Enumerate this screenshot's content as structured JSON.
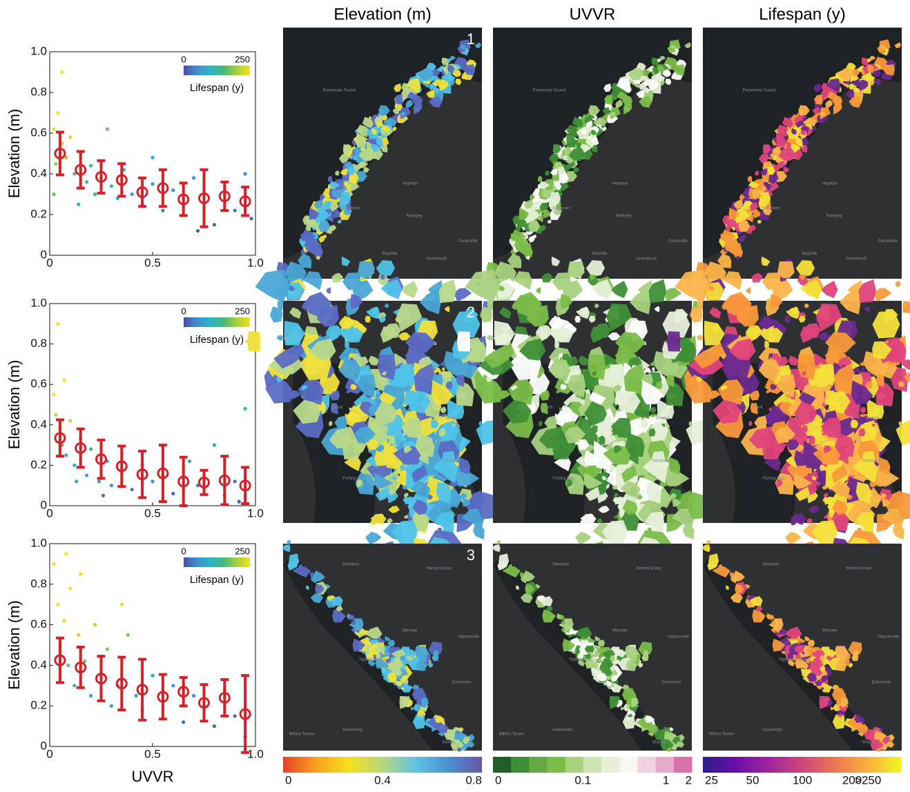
{
  "chart_data": [
    {
      "type": "scatter",
      "ylabel": "Elevation (m)",
      "xlim": [
        0,
        1
      ],
      "ylim": [
        0,
        1
      ],
      "xticks": [
        0,
        0.5,
        {
          "value": 1,
          "label": "1.0"
        }
      ],
      "yticks": [
        0,
        0.2,
        0.4,
        0.6,
        0.8,
        {
          "value": 1,
          "label": "1.0"
        }
      ],
      "points": {
        "x": [
          0.02,
          0.04,
          0.06,
          0.08,
          0.1,
          0.03,
          0.12,
          0.15,
          0.18,
          0.2,
          0.22,
          0.25,
          0.28,
          0.3,
          0.33,
          0.36,
          0.4,
          0.45,
          0.5,
          0.55,
          0.6,
          0.65,
          0.7,
          0.75,
          0.8,
          0.85,
          0.9,
          0.95,
          0.06,
          0.14,
          0.5,
          0.72,
          0.98,
          0.02
        ],
        "y": [
          0.62,
          0.7,
          0.55,
          0.48,
          0.58,
          0.45,
          0.4,
          0.5,
          0.36,
          0.44,
          0.3,
          0.38,
          0.62,
          0.34,
          0.28,
          0.42,
          0.3,
          0.25,
          0.35,
          0.22,
          0.32,
          0.2,
          0.38,
          0.26,
          0.15,
          0.3,
          0.22,
          0.4,
          0.9,
          0.25,
          0.48,
          0.12,
          0.18,
          0.3
        ],
        "lifespan": [
          240,
          250,
          220,
          200,
          230,
          190,
          160,
          180,
          130,
          150,
          100,
          120,
          170,
          100,
          80,
          110,
          70,
          55,
          70,
          40,
          55,
          30,
          60,
          35,
          20,
          40,
          25,
          50,
          250,
          110,
          90,
          15,
          20,
          170
        ]
      },
      "binned": {
        "color": "#d62027",
        "x": [
          0.05,
          0.15,
          0.25,
          0.35,
          0.45,
          0.55,
          0.65,
          0.75,
          0.85,
          0.95
        ],
        "y": [
          0.5,
          0.42,
          0.385,
          0.37,
          0.31,
          0.33,
          0.275,
          0.28,
          0.29,
          0.265
        ],
        "err": [
          0.105,
          0.09,
          0.08,
          0.08,
          0.07,
          0.09,
          0.08,
          0.14,
          0.07,
          0.07
        ]
      },
      "colorbar": {
        "clim": [
          0,
          250
        ],
        "ticks": [
          0,
          250
        ],
        "label": "Lifespan (y)",
        "colors": [
          "#4a4ea3",
          "#3f8fd0",
          "#29b5c4",
          "#45b97c",
          "#a8cf3a",
          "#f6e11c"
        ]
      }
    },
    {
      "type": "scatter",
      "ylabel": "Elevation (m)",
      "xlim": [
        0,
        1
      ],
      "ylim": [
        0,
        1
      ],
      "xticks": [
        0,
        0.5,
        {
          "value": 1,
          "label": "1.0"
        }
      ],
      "yticks": [
        0,
        0.2,
        0.4,
        0.6,
        0.8,
        {
          "value": 1,
          "label": "1.0"
        }
      ],
      "points": {
        "x": [
          0.02,
          0.03,
          0.05,
          0.06,
          0.08,
          0.1,
          0.12,
          0.15,
          0.18,
          0.2,
          0.24,
          0.28,
          0.3,
          0.35,
          0.4,
          0.45,
          0.5,
          0.55,
          0.6,
          0.68,
          0.72,
          0.8,
          0.85,
          0.9,
          0.95,
          0.04,
          0.13,
          0.26,
          0.92,
          0.07
        ],
        "y": [
          0.55,
          0.45,
          0.38,
          0.3,
          0.25,
          0.42,
          0.2,
          0.33,
          0.15,
          0.28,
          0.12,
          0.22,
          0.1,
          0.18,
          0.08,
          0.2,
          0.12,
          0.15,
          0.06,
          0.22,
          0.1,
          0.3,
          0.05,
          0.12,
          0.48,
          0.9,
          0.12,
          0.05,
          0.02,
          0.62
        ],
        "lifespan": [
          250,
          220,
          190,
          150,
          130,
          210,
          100,
          170,
          80,
          140,
          60,
          110,
          50,
          80,
          35,
          80,
          50,
          55,
          20,
          70,
          30,
          80,
          15,
          30,
          100,
          250,
          70,
          30,
          10,
          250
        ]
      },
      "binned": {
        "color": "#d62027",
        "x": [
          0.05,
          0.15,
          0.25,
          0.35,
          0.45,
          0.55,
          0.65,
          0.75,
          0.85,
          0.95
        ],
        "y": [
          0.335,
          0.285,
          0.23,
          0.195,
          0.155,
          0.16,
          0.12,
          0.115,
          0.125,
          0.1
        ],
        "err": [
          0.09,
          0.095,
          0.095,
          0.1,
          0.115,
          0.14,
          0.12,
          0.06,
          0.12,
          0.09
        ]
      },
      "colorbar": {
        "clim": [
          0,
          250
        ],
        "ticks": [
          0,
          250
        ],
        "label": "Lifespan (y)",
        "colors": [
          "#4a4ea3",
          "#3f8fd0",
          "#29b5c4",
          "#45b97c",
          "#a8cf3a",
          "#f6e11c"
        ]
      }
    },
    {
      "type": "scatter",
      "ylabel": "Elevation (m)",
      "xlabel": "UVVR",
      "xlim": [
        0,
        1
      ],
      "ylim": [
        0,
        1
      ],
      "xticks": [
        0,
        0.5,
        {
          "value": 1,
          "label": "1.0"
        }
      ],
      "yticks": [
        0,
        0.2,
        0.4,
        0.6,
        0.8,
        {
          "value": 1,
          "label": "1.0"
        }
      ],
      "points": {
        "x": [
          0.02,
          0.04,
          0.05,
          0.07,
          0.09,
          0.1,
          0.12,
          0.14,
          0.17,
          0.2,
          0.22,
          0.25,
          0.28,
          0.3,
          0.33,
          0.38,
          0.42,
          0.45,
          0.5,
          0.55,
          0.6,
          0.65,
          0.7,
          0.75,
          0.8,
          0.85,
          0.9,
          0.95,
          0.08,
          0.35,
          0.15
        ],
        "y": [
          0.9,
          0.7,
          0.5,
          0.62,
          0.4,
          0.78,
          0.3,
          0.55,
          0.42,
          0.25,
          0.6,
          0.35,
          0.48,
          0.2,
          0.3,
          0.55,
          0.25,
          0.18,
          0.35,
          0.22,
          0.3,
          0.12,
          0.25,
          0.2,
          0.1,
          0.28,
          0.15,
          0.05,
          0.95,
          0.7,
          0.85
        ],
        "lifespan": [
          250,
          250,
          210,
          240,
          170,
          250,
          120,
          220,
          170,
          90,
          220,
          120,
          180,
          60,
          90,
          180,
          70,
          45,
          90,
          50,
          70,
          25,
          55,
          40,
          20,
          50,
          25,
          10,
          250,
          240,
          250
        ]
      },
      "binned": {
        "color": "#d62027",
        "x": [
          0.05,
          0.15,
          0.25,
          0.35,
          0.45,
          0.55,
          0.65,
          0.75,
          0.85,
          0.95
        ],
        "y": [
          0.425,
          0.39,
          0.335,
          0.31,
          0.28,
          0.245,
          0.27,
          0.215,
          0.24,
          0.16
        ],
        "err": [
          0.11,
          0.1,
          0.11,
          0.13,
          0.15,
          0.11,
          0.07,
          0.09,
          0.09,
          0.19
        ]
      },
      "colorbar": {
        "clim": [
          0,
          250
        ],
        "ticks": [
          0,
          250
        ],
        "label": "Lifespan (y)",
        "colors": [
          "#4a4ea3",
          "#3f8fd0",
          "#29b5c4",
          "#45b97c",
          "#a8cf3a",
          "#f6e11c"
        ]
      }
    }
  ],
  "map_columns": [
    {
      "title": "Elevation (m)",
      "palette": [
        "#4fc3e8",
        "#5b6bc4",
        "#b9d98a",
        "#f0e23c",
        "#4aa7d6"
      ],
      "colorbar": {
        "lim": [
          0,
          0.8
        ],
        "ticks": [
          0,
          0.4,
          0.8
        ],
        "colors": [
          "#e8402a",
          "#f7a21b",
          "#f6e11c",
          "#b6d77a",
          "#5fc3e4",
          "#4a90d0",
          "#6a55a8"
        ]
      }
    },
    {
      "title": "UVVR",
      "palette": [
        "#e6efd8",
        "#7cbd4a",
        "#3f8f37",
        "#ffffff",
        "#a9d27f"
      ],
      "colorbar": {
        "lim": [
          0,
          2
        ],
        "ticks": [
          0,
          0.1,
          1,
          2
        ],
        "colors": [
          "#1f5e2a",
          "#3f8f37",
          "#66a844",
          "#7cbd4a",
          "#a9d27f",
          "#cfe4b4",
          "#e6efd8",
          "#f7f7f4",
          "#f1d2e2",
          "#e8aacb",
          "#d972aa"
        ]
      }
    },
    {
      "title": "Lifespan (y)",
      "palette": [
        "#f4e03a",
        "#f8993a",
        "#e0457b",
        "#6a2a8f",
        "#fbb44a"
      ],
      "colorbar": {
        "lim": [
          25,
          400
        ],
        "log": true,
        "ticks": [
          25,
          50,
          100,
          200,
          {
            "value": 250,
            "label": ">250"
          }
        ],
        "colors": [
          "#2d1e8a",
          "#6a0ea8",
          "#a1259c",
          "#cc4778",
          "#ec7853",
          "#fbb03a",
          "#f0f921"
        ]
      }
    }
  ],
  "maps": [
    {
      "number": "1",
      "places": [
        "Pocomoke Sound",
        "Westover",
        "Hopeton",
        "Parksley",
        "Bayside",
        "Greenbush",
        "Centerville"
      ]
    },
    {
      "number": "2",
      "places": [
        "Elliott",
        "Bivalve",
        "Nanticoke",
        "Fishing Bay"
      ]
    },
    {
      "number": "3",
      "places": [
        "Newland",
        "Nomini Grove",
        "Warsaw",
        "Haynesville",
        "Tappahannock",
        "Emmerton",
        "Howertons",
        "Millers Tavern",
        "Sharps"
      ]
    }
  ]
}
